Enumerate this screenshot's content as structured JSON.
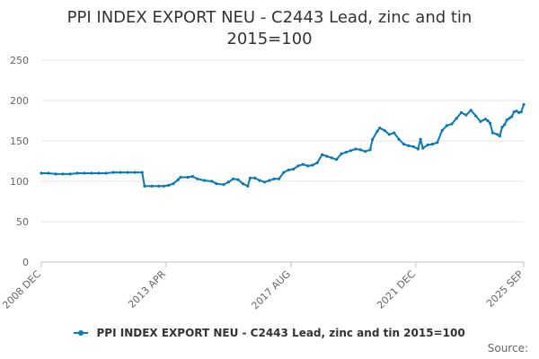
{
  "chart_data": {
    "type": "line",
    "title": [
      "PPI INDEX EXPORT NEU - C2443 Lead, zinc and tin",
      "2015=100"
    ],
    "xlabel": "",
    "ylabel": "",
    "ylim": [
      0,
      250
    ],
    "yticks": [
      0,
      50,
      100,
      150,
      200,
      250
    ],
    "xlim": [
      "2008-12",
      "2025-09"
    ],
    "xtick_labels": [
      {
        "label": "2008 DEC",
        "x": "2008-12"
      },
      {
        "label": "2013 APR",
        "x": "2013-04"
      },
      {
        "label": "2017 AUG",
        "x": "2017-08"
      },
      {
        "label": "2021 DEC",
        "x": "2021-12"
      },
      {
        "label": "2025 SEP",
        "x": "2025-09"
      }
    ],
    "grid": true,
    "legend_position": "bottom",
    "color": "#0a7ab5",
    "series": [
      {
        "name": "PPI INDEX EXPORT NEU - C2443 Lead, zinc and tin 2015=100",
        "points": [
          [
            "2008-12",
            110
          ],
          [
            "2009-03",
            110
          ],
          [
            "2009-06",
            109
          ],
          [
            "2009-09",
            109
          ],
          [
            "2009-12",
            109
          ],
          [
            "2010-03",
            110
          ],
          [
            "2010-06",
            110
          ],
          [
            "2010-09",
            110
          ],
          [
            "2010-12",
            110
          ],
          [
            "2011-03",
            110
          ],
          [
            "2011-06",
            111
          ],
          [
            "2011-09",
            111
          ],
          [
            "2011-12",
            111
          ],
          [
            "2012-03",
            111
          ],
          [
            "2012-06",
            111
          ],
          [
            "2012-07",
            94
          ],
          [
            "2012-10",
            94
          ],
          [
            "2013-01",
            94
          ],
          [
            "2013-03",
            94
          ],
          [
            "2013-05",
            95
          ],
          [
            "2013-07",
            97
          ],
          [
            "2013-09",
            102
          ],
          [
            "2013-10",
            105
          ],
          [
            "2014-01",
            105
          ],
          [
            "2014-03",
            106
          ],
          [
            "2014-05",
            103
          ],
          [
            "2014-08",
            101
          ],
          [
            "2014-11",
            100
          ],
          [
            "2015-01",
            97
          ],
          [
            "2015-04",
            96
          ],
          [
            "2015-06",
            99
          ],
          [
            "2015-08",
            103
          ],
          [
            "2015-10",
            102
          ],
          [
            "2015-12",
            97
          ],
          [
            "2016-02",
            94
          ],
          [
            "2016-03",
            104
          ],
          [
            "2016-05",
            104
          ],
          [
            "2016-07",
            101
          ],
          [
            "2016-09",
            99
          ],
          [
            "2016-11",
            101
          ],
          [
            "2017-01",
            103
          ],
          [
            "2017-03",
            103
          ],
          [
            "2017-05",
            111
          ],
          [
            "2017-07",
            114
          ],
          [
            "2017-09",
            115
          ],
          [
            "2017-11",
            119
          ],
          [
            "2018-01",
            121
          ],
          [
            "2018-03",
            119
          ],
          [
            "2018-05",
            120
          ],
          [
            "2018-07",
            123
          ],
          [
            "2018-09",
            133
          ],
          [
            "2018-11",
            131
          ],
          [
            "2019-01",
            129
          ],
          [
            "2019-03",
            127
          ],
          [
            "2019-05",
            134
          ],
          [
            "2019-07",
            136
          ],
          [
            "2019-09",
            138
          ],
          [
            "2019-11",
            140
          ],
          [
            "2020-01",
            139
          ],
          [
            "2020-03",
            137
          ],
          [
            "2020-05",
            139
          ],
          [
            "2020-06",
            152
          ],
          [
            "2020-08",
            162
          ],
          [
            "2020-09",
            166
          ],
          [
            "2020-11",
            163
          ],
          [
            "2021-01",
            158
          ],
          [
            "2021-03",
            160
          ],
          [
            "2021-05",
            152
          ],
          [
            "2021-07",
            146
          ],
          [
            "2021-09",
            144
          ],
          [
            "2021-11",
            143
          ],
          [
            "2022-01",
            140
          ],
          [
            "2022-02",
            152
          ],
          [
            "2022-03",
            141
          ],
          [
            "2022-05",
            145
          ],
          [
            "2022-07",
            146
          ],
          [
            "2022-09",
            148
          ],
          [
            "2022-11",
            163
          ],
          [
            "2023-01",
            169
          ],
          [
            "2023-03",
            171
          ],
          [
            "2023-05",
            178
          ],
          [
            "2023-07",
            185
          ],
          [
            "2023-09",
            182
          ],
          [
            "2023-11",
            188
          ],
          [
            "2024-01",
            181
          ],
          [
            "2024-03",
            174
          ],
          [
            "2024-05",
            177
          ],
          [
            "2024-06",
            175
          ],
          [
            "2024-07",
            172
          ],
          [
            "2024-08",
            160
          ],
          [
            "2024-10",
            158
          ],
          [
            "2024-11",
            156
          ],
          [
            "2024-12",
            167
          ],
          [
            "2025-01",
            170
          ],
          [
            "2025-02",
            176
          ],
          [
            "2025-03",
            178
          ],
          [
            "2025-04",
            180
          ],
          [
            "2025-05",
            186
          ],
          [
            "2025-06",
            187
          ],
          [
            "2025-07",
            185
          ],
          [
            "2025-08",
            186
          ],
          [
            "2025-09",
            195
          ]
        ]
      }
    ]
  },
  "legend": {
    "label": "PPI INDEX EXPORT NEU - C2443 Lead, zinc and tin 2015=100"
  },
  "source_label": "Source:"
}
